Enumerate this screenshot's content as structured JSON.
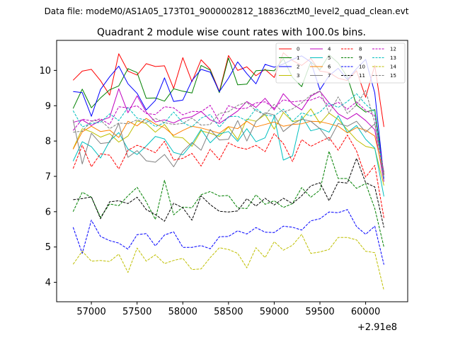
{
  "chart_data": {
    "type": "line",
    "suptitle": "Data file: modeM0/AS1A05_173T01_9000002812_18836cztM0_level2_quad_clean.evt",
    "title": "Quadrant 2 module wise count rates with 100.0s bins.",
    "xlabel": "",
    "ylabel": "",
    "offset_label": "+2.91e8",
    "xlim": [
      56620,
      60460
    ],
    "ylim": [
      3.45,
      10.85
    ],
    "xticks": [
      57000,
      57500,
      58000,
      58500,
      59000,
      59500,
      60000
    ],
    "yticks": [
      4,
      5,
      6,
      7,
      8,
      9,
      10
    ],
    "x_start": 56800,
    "x_step": 100,
    "legend_position": "upper right",
    "series": [
      {
        "name": "0",
        "color": "#ff0000",
        "dash": "solid",
        "values": [
          9.72,
          9.98,
          10.03,
          9.71,
          9.3,
          10.47,
          9.98,
          9.87,
          10.19,
          10.11,
          10.13,
          9.49,
          10.36,
          9.68,
          10.3,
          10.03,
          9.4,
          10.42,
          10.0,
          10.1,
          9.85,
          10.03,
          9.8,
          10.5,
          10.28,
          10.14,
          10.34,
          9.98,
          9.94,
          9.78,
          9.71,
          9.99,
          9.24,
          10.14,
          8.4
        ]
      },
      {
        "name": "1",
        "color": "#008000",
        "dash": "solid",
        "values": [
          8.92,
          9.47,
          8.94,
          9.22,
          9.45,
          9.56,
          10.05,
          9.94,
          9.21,
          9.22,
          9.13,
          9.48,
          9.41,
          9.36,
          10.14,
          10.01,
          9.37,
          10.35,
          9.59,
          9.61,
          9.99,
          10.01,
          9.99,
          10.33,
          9.8,
          9.54,
          10.24,
          10.02,
          10.44,
          10.21,
          9.81,
          9.02,
          8.82,
          8.89,
          7.05
        ]
      },
      {
        "name": "2",
        "color": "#0000ff",
        "dash": "solid",
        "values": [
          9.4,
          9.37,
          8.7,
          9.46,
          9.82,
          10.12,
          9.62,
          9.35,
          8.88,
          9.15,
          9.79,
          9.12,
          9.16,
          9.71,
          10.03,
          9.95,
          9.4,
          9.78,
          10.24,
          9.91,
          9.62,
          10.17,
          10.09,
          10.18,
          10.31,
          10.41,
          10.24,
          9.45,
          9.85,
          10.06,
          9.74,
          10.05,
          10.31,
          9.36,
          6.94
        ]
      },
      {
        "name": "3",
        "color": "#bfbf00",
        "dash": "solid",
        "values": [
          7.78,
          8.35,
          8.26,
          8.11,
          8.21,
          7.97,
          8.14,
          8.57,
          8.49,
          8.25,
          8.47,
          8.12,
          8.09,
          7.85,
          8.29,
          8.22,
          8.13,
          8.4,
          8.04,
          8.62,
          8.56,
          8.75,
          8.34,
          8.81,
          8.55,
          8.6,
          8.91,
          8.5,
          8.79,
          8.61,
          8.32,
          8.03,
          7.85,
          7.79,
          6.74
        ]
      },
      {
        "name": "4",
        "color": "#bf00bf",
        "dash": "solid",
        "values": [
          8.53,
          8.6,
          8.44,
          8.58,
          8.67,
          9.48,
          8.8,
          9.28,
          8.82,
          8.54,
          8.6,
          8.51,
          8.64,
          8.69,
          8.84,
          8.6,
          8.5,
          8.67,
          8.85,
          9.12,
          8.95,
          9.21,
          8.88,
          9.34,
          9.05,
          8.88,
          9.27,
          9.41,
          9.08,
          8.77,
          8.62,
          8.78,
          8.58,
          8.32,
          6.85
        ]
      },
      {
        "name": "5",
        "color": "#00bfbf",
        "dash": "solid",
        "values": [
          7.43,
          7.98,
          7.84,
          7.52,
          8.0,
          8.24,
          7.77,
          7.62,
          7.86,
          8.13,
          8.06,
          7.68,
          7.61,
          7.92,
          8.33,
          7.95,
          8.2,
          8.27,
          7.99,
          8.35,
          7.98,
          8.09,
          8.69,
          7.46,
          7.58,
          8.71,
          8.29,
          8.36,
          8.25,
          8.72,
          8.24,
          8.44,
          8.05,
          7.8,
          6.43
        ]
      },
      {
        "name": "6",
        "color": "#ff8000",
        "dash": "solid",
        "values": [
          7.77,
          8.26,
          8.42,
          8.27,
          8.31,
          8.1,
          8.56,
          8.43,
          8.64,
          8.48,
          8.38,
          8.16,
          8.3,
          8.42,
          8.37,
          8.3,
          8.22,
          8.41,
          8.35,
          8.56,
          8.4,
          8.47,
          8.54,
          8.42,
          8.47,
          8.49,
          8.56,
          8.55,
          8.49,
          8.42,
          8.23,
          8.38,
          8.31,
          8.14,
          7.04
        ]
      },
      {
        "name": "7",
        "color": "#808080",
        "dash": "solid",
        "values": [
          8.6,
          7.35,
          8.22,
          7.93,
          7.96,
          8.5,
          7.54,
          7.73,
          7.44,
          7.4,
          7.62,
          7.27,
          7.71,
          7.96,
          7.74,
          8.33,
          8.03,
          8.05,
          8.58,
          8.0,
          8.55,
          8.8,
          8.74,
          8.27,
          8.48,
          8.62,
          8.56,
          8.35,
          8.01,
          8.5,
          8.42,
          8.56,
          8.25,
          8.49,
          7.12
        ]
      },
      {
        "name": "8",
        "color": "#ff0000",
        "dash": "dashed",
        "values": [
          7.22,
          7.88,
          7.27,
          7.64,
          7.6,
          7.21,
          7.74,
          7.88,
          7.79,
          7.67,
          7.99,
          7.46,
          7.51,
          7.65,
          7.29,
          7.77,
          7.47,
          7.95,
          7.82,
          7.77,
          7.88,
          7.7,
          8.21,
          7.93,
          7.42,
          8.04,
          7.85,
          7.98,
          8.1,
          7.74,
          8.17,
          7.72,
          6.98,
          7.31,
          5.82
        ]
      },
      {
        "name": "9",
        "color": "#008000",
        "dash": "dashed",
        "values": [
          6.0,
          6.55,
          6.41,
          5.84,
          6.22,
          6.17,
          6.45,
          6.69,
          6.28,
          5.78,
          6.89,
          5.91,
          6.13,
          6.11,
          6.48,
          6.57,
          6.44,
          6.46,
          6.11,
          6.09,
          6.48,
          6.21,
          6.31,
          6.12,
          6.23,
          6.68,
          6.41,
          6.61,
          7.71,
          6.94,
          6.94,
          6.66,
          6.8,
          6.09,
          5.0
        ]
      },
      {
        "name": "10",
        "color": "#0000ff",
        "dash": "dashed",
        "values": [
          5.56,
          4.82,
          5.76,
          5.3,
          5.18,
          5.11,
          4.94,
          5.35,
          5.38,
          5.03,
          5.34,
          5.43,
          4.99,
          4.99,
          5.04,
          4.95,
          5.29,
          5.3,
          5.46,
          5.37,
          5.55,
          5.42,
          5.41,
          5.59,
          5.56,
          5.48,
          5.74,
          5.8,
          5.99,
          5.97,
          6.06,
          5.58,
          5.36,
          5.59,
          4.5
        ]
      },
      {
        "name": "11",
        "color": "#000000",
        "dash": "dashed",
        "values": [
          6.34,
          6.37,
          6.42,
          5.8,
          6.28,
          6.31,
          6.23,
          6.41,
          6.06,
          5.92,
          5.73,
          6.24,
          6.11,
          5.76,
          6.45,
          6.2,
          6.01,
          5.99,
          6.02,
          6.37,
          6.16,
          6.38,
          6.19,
          6.38,
          6.23,
          6.45,
          6.73,
          6.82,
          6.31,
          6.84,
          6.81,
          7.51,
          6.82,
          6.7,
          5.55
        ]
      },
      {
        "name": "12",
        "color": "#bf00bf",
        "dash": "dashed",
        "values": [
          8.3,
          8.62,
          8.57,
          8.63,
          8.47,
          8.97,
          8.94,
          9.0,
          8.78,
          8.75,
          8.97,
          8.94,
          8.74,
          8.84,
          8.83,
          9.01,
          8.55,
          9.0,
          8.91,
          8.93,
          9.08,
          9.11,
          8.93,
          9.17,
          9.11,
          9.14,
          9.16,
          9.26,
          8.98,
          9.1,
          8.9,
          9.11,
          8.87,
          8.72,
          7.05
        ]
      },
      {
        "name": "13",
        "color": "#00bfbf",
        "dash": "dashed",
        "values": [
          8.86,
          8.4,
          8.5,
          8.53,
          8.77,
          8.58,
          8.95,
          8.65,
          8.59,
          8.41,
          8.52,
          8.82,
          8.52,
          8.4,
          8.65,
          8.75,
          8.39,
          8.69,
          8.7,
          8.57,
          8.92,
          8.73,
          8.71,
          8.9,
          8.56,
          8.8,
          8.71,
          8.82,
          9.07,
          8.95,
          9.12,
          9.34,
          9.04,
          8.82,
          6.91
        ]
      },
      {
        "name": "14",
        "color": "#bfbf00",
        "dash": "dashed",
        "values": [
          4.51,
          4.88,
          4.6,
          4.62,
          4.59,
          4.8,
          4.28,
          4.97,
          4.6,
          4.78,
          4.53,
          4.62,
          4.68,
          4.36,
          4.38,
          4.7,
          4.98,
          4.93,
          4.82,
          4.41,
          4.98,
          4.7,
          5.15,
          4.91,
          5.05,
          5.36,
          4.82,
          4.86,
          4.93,
          5.27,
          5.27,
          5.2,
          4.88,
          4.84,
          3.77
        ]
      },
      {
        "name": "15",
        "color": "#808080",
        "dash": "dashed",
        "values": [
          8.25,
          8.28,
          8.56,
          8.59,
          8.35,
          8.51,
          8.49,
          8.6,
          8.52,
          8.64,
          8.52,
          8.47,
          8.5,
          8.65,
          8.45,
          8.47,
          8.78,
          8.83,
          9.01,
          9.1,
          8.86,
          8.74,
          9.04,
          8.82,
          8.91,
          9.08,
          9.3,
          9.42,
          8.79,
          9.25,
          8.78,
          9.02,
          9.43,
          8.51,
          6.97
        ]
      }
    ]
  }
}
